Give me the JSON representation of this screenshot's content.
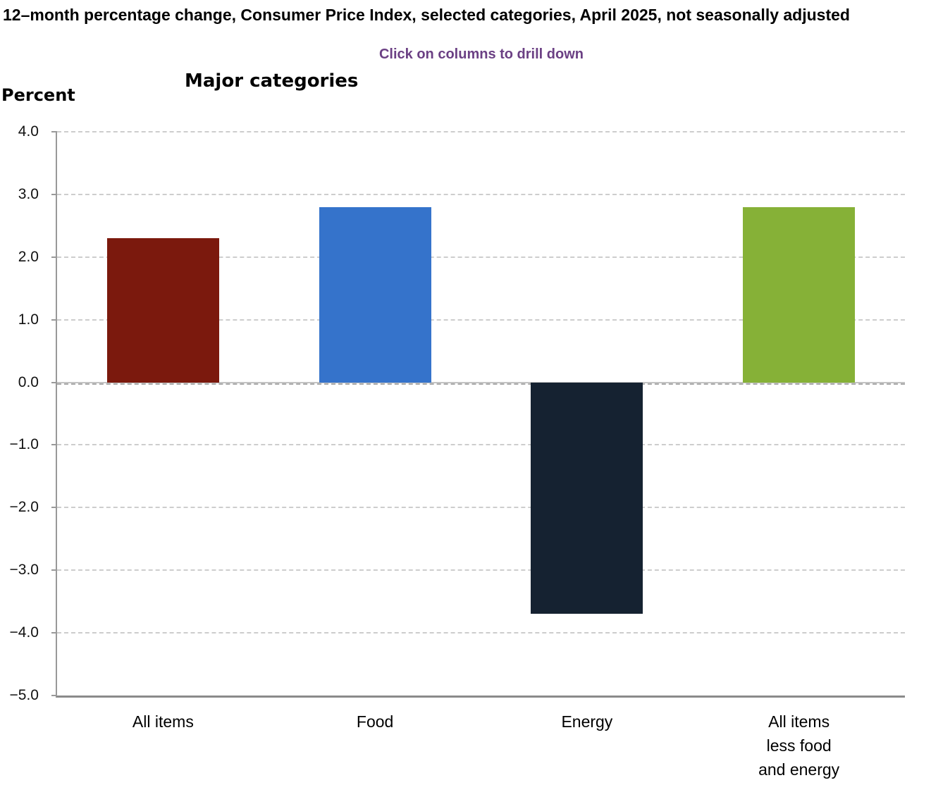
{
  "header": {
    "title": "12–month percentage change, Consumer Price Index, selected categories, April 2025, not seasonally adjusted",
    "drill_hint": "Click on columns to drill down",
    "drill_hint_color": "#6b4084"
  },
  "chart_data": {
    "type": "bar",
    "title": "Major categories",
    "ylabel": "Percent",
    "categories": [
      "All items",
      "Food",
      "Energy",
      "All items less food and energy"
    ],
    "category_label_lines": [
      [
        "All items"
      ],
      [
        "Food"
      ],
      [
        "Energy"
      ],
      [
        "All items",
        "less food",
        "and energy"
      ]
    ],
    "values": [
      2.3,
      2.8,
      -3.7,
      2.8
    ],
    "colors": [
      "#7b190d",
      "#3573cb",
      "#152231",
      "#86b137"
    ],
    "ylim": [
      -5.0,
      4.0
    ],
    "yticks": [
      {
        "label": "4.0",
        "value": 4.0
      },
      {
        "label": "3.0",
        "value": 3.0
      },
      {
        "label": "2.0",
        "value": 2.0
      },
      {
        "label": "1.0",
        "value": 1.0
      },
      {
        "label": "0.0",
        "value": 0.0
      },
      {
        "label": "−1.0",
        "value": -1.0
      },
      {
        "label": "−2.0",
        "value": -2.0
      },
      {
        "label": "−3.0",
        "value": -3.0
      },
      {
        "label": "−4.0",
        "value": -4.0
      },
      {
        "label": "−5.0",
        "value": -5.0
      }
    ],
    "grid": "horizontal-dashed",
    "legend": "none"
  }
}
